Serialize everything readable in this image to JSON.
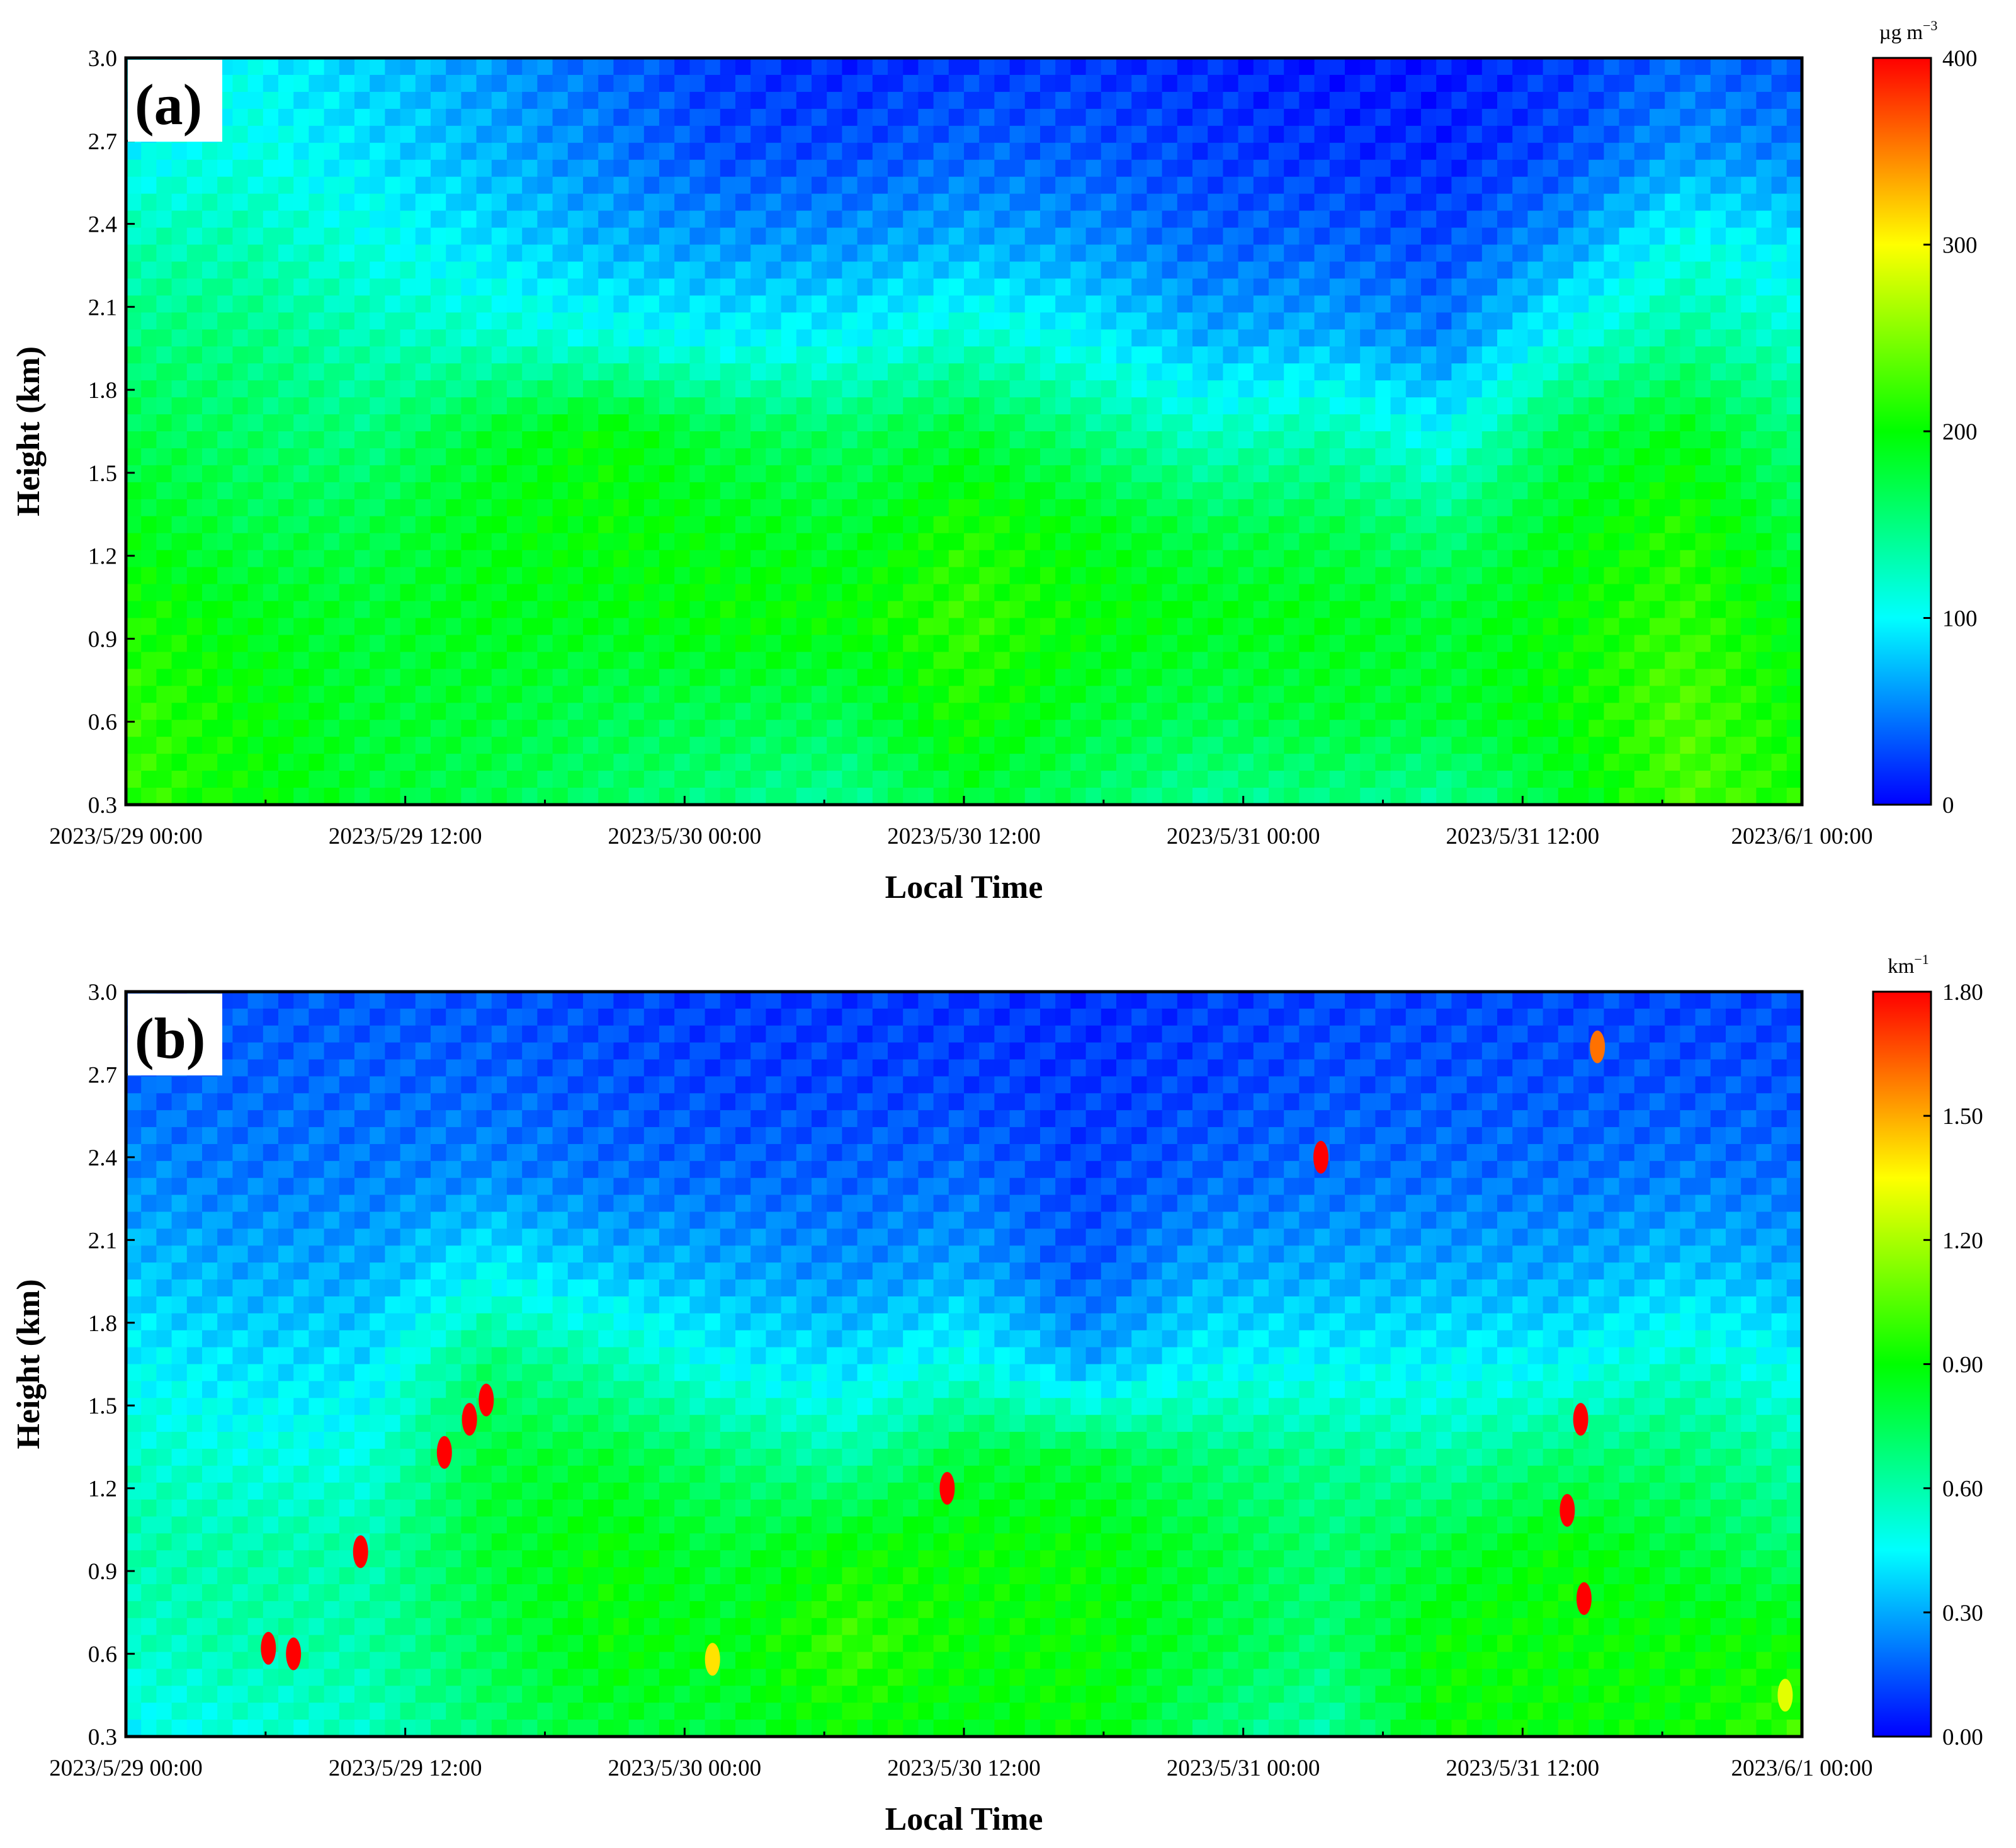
{
  "chart_data": [
    {
      "type": "heatmap",
      "panel_label": "(a)",
      "xlabel": "Local Time",
      "ylabel": "Height (km)",
      "colorbar_unit": "µg m",
      "colorbar_unit_exp": "−3",
      "x_range": [
        "2023/5/29 00:00",
        "2023/6/1 00:00"
      ],
      "x_ticks": [
        "2023/5/29 00:00",
        "2023/5/29 12:00",
        "2023/5/30 00:00",
        "2023/5/30 12:00",
        "2023/5/31 00:00",
        "2023/5/31 12:00",
        "2023/6/1 00:00"
      ],
      "y_range": [
        0.3,
        3.0
      ],
      "y_ticks": [
        "0.3",
        "0.6",
        "0.9",
        "1.2",
        "1.5",
        "1.8",
        "2.1",
        "2.4",
        "2.7",
        "3.0"
      ],
      "colorbar_range": [
        0,
        400
      ],
      "colorbar_ticks": [
        "0",
        "100",
        "200",
        "300",
        "400"
      ],
      "colormap": [
        "#0000ff",
        "#00ffff",
        "#00ff00",
        "#ffff00",
        "#ff0000"
      ],
      "values": [
        [
          90,
          100,
          80,
          60,
          40,
          20,
          15,
          20,
          20,
          15,
          10,
          10,
          20,
          40,
          30
        ],
        [
          100,
          110,
          90,
          70,
          50,
          30,
          30,
          40,
          35,
          25,
          20,
          15,
          30,
          60,
          50
        ],
        [
          130,
          130,
          110,
          90,
          70,
          60,
          60,
          70,
          60,
          40,
          40,
          30,
          60,
          110,
          90
        ],
        [
          150,
          150,
          130,
          120,
          110,
          100,
          100,
          120,
          100,
          70,
          70,
          50,
          110,
          140,
          120
        ],
        [
          170,
          160,
          150,
          180,
          200,
          170,
          160,
          180,
          150,
          120,
          130,
          100,
          170,
          190,
          150
        ],
        [
          190,
          170,
          170,
          190,
          200,
          190,
          180,
          210,
          190,
          170,
          170,
          150,
          190,
          210,
          170
        ],
        [
          210,
          190,
          180,
          190,
          190,
          200,
          200,
          220,
          200,
          190,
          190,
          180,
          200,
          220,
          190
        ],
        [
          220,
          200,
          180,
          180,
          170,
          170,
          170,
          210,
          180,
          170,
          180,
          180,
          200,
          230,
          200
        ],
        [
          220,
          200,
          180,
          170,
          160,
          150,
          140,
          180,
          160,
          140,
          150,
          140,
          180,
          230,
          210
        ]
      ]
    },
    {
      "type": "heatmap",
      "panel_label": "(b)",
      "xlabel": "Local Time",
      "ylabel": "Height (km)",
      "colorbar_unit": "km",
      "colorbar_unit_exp": "−1",
      "x_range": [
        "2023/5/29 00:00",
        "2023/6/1 00:00"
      ],
      "x_ticks": [
        "2023/5/29 00:00",
        "2023/5/29 12:00",
        "2023/5/30 00:00",
        "2023/5/30 12:00",
        "2023/5/31 00:00",
        "2023/5/31 12:00",
        "2023/6/1 00:00"
      ],
      "y_range": [
        0.3,
        3.0
      ],
      "y_ticks": [
        "0.3",
        "0.6",
        "0.9",
        "1.2",
        "1.5",
        "1.8",
        "2.1",
        "2.4",
        "2.7",
        "3.0"
      ],
      "colorbar_range": [
        0.0,
        1.8
      ],
      "colorbar_ticks": [
        "0.00",
        "0.30",
        "0.60",
        "0.90",
        "1.20",
        "1.50",
        "1.80"
      ],
      "colormap": [
        "#0000ff",
        "#00ffff",
        "#00ff00",
        "#ffff00",
        "#ff0000"
      ],
      "values": [
        [
          0.15,
          0.15,
          0.15,
          0.15,
          0.12,
          0.1,
          0.1,
          0.1,
          0.08,
          0.1,
          0.12,
          0.12,
          0.12,
          0.12,
          0.12
        ],
        [
          0.18,
          0.18,
          0.18,
          0.18,
          0.15,
          0.12,
          0.12,
          0.12,
          0.1,
          0.12,
          0.15,
          0.15,
          0.15,
          0.15,
          0.15
        ],
        [
          0.25,
          0.22,
          0.22,
          0.25,
          0.2,
          0.18,
          0.18,
          0.2,
          0.12,
          0.18,
          0.2,
          0.2,
          0.2,
          0.22,
          0.2
        ],
        [
          0.35,
          0.3,
          0.3,
          0.45,
          0.35,
          0.3,
          0.25,
          0.3,
          0.15,
          0.3,
          0.3,
          0.3,
          0.3,
          0.35,
          0.3
        ],
        [
          0.45,
          0.4,
          0.4,
          0.7,
          0.6,
          0.45,
          0.4,
          0.5,
          0.3,
          0.45,
          0.45,
          0.45,
          0.45,
          0.55,
          0.45
        ],
        [
          0.55,
          0.5,
          0.5,
          0.8,
          0.8,
          0.7,
          0.6,
          0.8,
          0.8,
          0.7,
          0.65,
          0.6,
          0.7,
          0.7,
          0.6
        ],
        [
          0.6,
          0.6,
          0.6,
          0.8,
          0.9,
          0.8,
          0.9,
          0.9,
          0.9,
          0.8,
          0.7,
          0.8,
          0.9,
          0.8,
          0.7
        ],
        [
          0.55,
          0.6,
          0.6,
          0.75,
          0.9,
          0.85,
          1.0,
          0.9,
          0.9,
          0.8,
          0.7,
          0.9,
          0.9,
          0.9,
          0.9
        ],
        [
          0.45,
          0.5,
          0.55,
          0.7,
          0.8,
          0.8,
          0.9,
          0.85,
          0.9,
          0.7,
          0.6,
          0.9,
          0.9,
          0.9,
          1.0
        ]
      ],
      "highlights": [
        {
          "t": 0.085,
          "h": 0.62,
          "v": 1.8
        },
        {
          "t": 0.1,
          "h": 0.6,
          "v": 1.8
        },
        {
          "t": 0.14,
          "h": 0.97,
          "v": 1.8
        },
        {
          "t": 0.19,
          "h": 1.33,
          "v": 1.8
        },
        {
          "t": 0.205,
          "h": 1.45,
          "v": 1.8
        },
        {
          "t": 0.215,
          "h": 1.52,
          "v": 1.8
        },
        {
          "t": 0.35,
          "h": 0.58,
          "v": 1.4
        },
        {
          "t": 0.49,
          "h": 1.2,
          "v": 1.8
        },
        {
          "t": 0.713,
          "h": 2.4,
          "v": 1.8
        },
        {
          "t": 0.86,
          "h": 1.12,
          "v": 1.8
        },
        {
          "t": 0.87,
          "h": 0.8,
          "v": 1.8
        },
        {
          "t": 0.868,
          "h": 1.45,
          "v": 1.8
        },
        {
          "t": 0.878,
          "h": 2.8,
          "v": 1.6
        },
        {
          "t": 0.99,
          "h": 0.45,
          "v": 1.3
        }
      ]
    }
  ]
}
